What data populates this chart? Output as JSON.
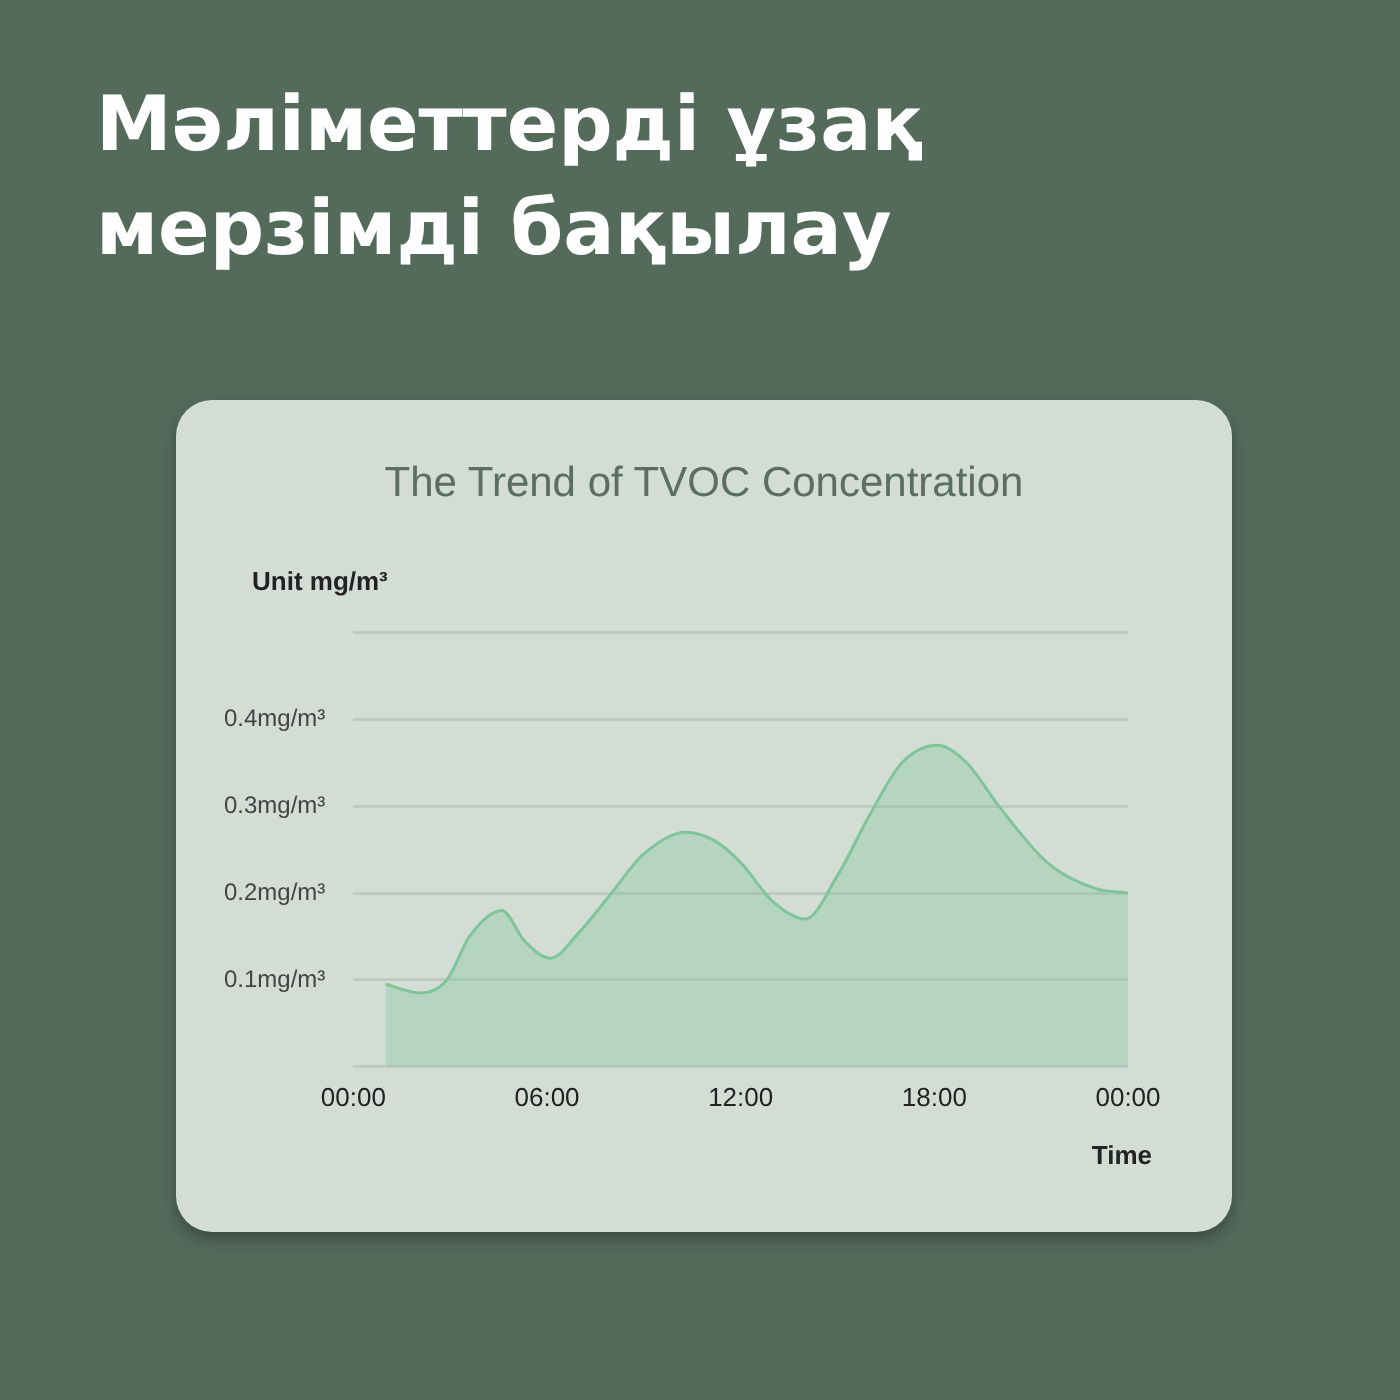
{
  "chart_data": {
    "type": "area",
    "title": "Мәліметтерді ұзақ мерзімді бақылау",
    "subtitle": "The Trend of TVOC Concentration",
    "ylabel": "Unit mg/m³",
    "xlabel": "Time",
    "x": [
      1,
      2.1,
      2.9,
      3.6,
      4.6,
      5.3,
      6.1,
      7,
      8,
      9,
      10.3,
      11.2,
      12,
      13,
      14,
      15,
      16,
      17,
      18.1,
      19,
      20,
      21.5,
      23,
      24
    ],
    "series": [
      {
        "color": "#7fc59a",
        "values": [
          0.095,
          0.085,
          0.1,
          0.15,
          0.18,
          0.145,
          0.125,
          0.155,
          0.2,
          0.245,
          0.27,
          0.26,
          0.235,
          0.19,
          0.17,
          0.22,
          0.29,
          0.35,
          0.37,
          0.35,
          0.3,
          0.235,
          0.205,
          0.2
        ]
      }
    ],
    "xlim": [
      0,
      24
    ],
    "xticks": [
      {
        "value": 0,
        "label": "00:00"
      },
      {
        "value": 6,
        "label": "06:00"
      },
      {
        "value": 12,
        "label": "12:00"
      },
      {
        "value": 18,
        "label": "18:00"
      },
      {
        "value": 24,
        "label": "00:00"
      }
    ],
    "ylim": [
      0,
      0.5
    ],
    "yticks": [
      {
        "value": 0,
        "label": null
      },
      {
        "value": 0.1,
        "label": "0.1mg/m³"
      },
      {
        "value": 0.2,
        "label": "0.2mg/m³"
      },
      {
        "value": 0.3,
        "label": "0.3mg/m³"
      },
      {
        "value": 0.4,
        "label": "0.4mg/m³"
      },
      {
        "value": 0.5,
        "label": null
      }
    ],
    "grid": "y",
    "legend": false,
    "marker": "none",
    "line_style": "solid"
  }
}
